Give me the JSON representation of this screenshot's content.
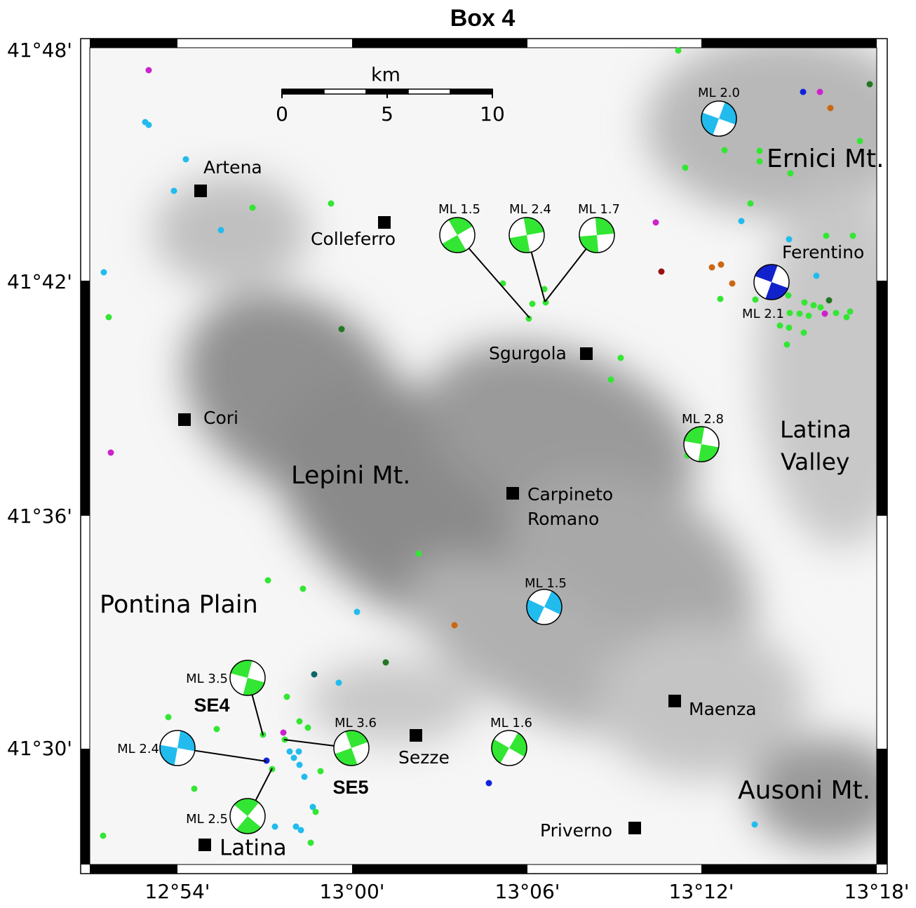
{
  "title": "Box 4",
  "lat_labels": [
    "41°48'",
    "41°42'",
    "41°36'",
    "41°30'"
  ],
  "lon_labels": [
    "12°54'",
    "13°00'",
    "13°06'",
    "13°12'",
    "13°18'"
  ],
  "scale": {
    "unit": "km",
    "ticks": [
      "0",
      "5",
      "10"
    ]
  },
  "places": [
    {
      "name": [
        "Artena"
      ]
    },
    {
      "name": [
        "Colleferro"
      ]
    },
    {
      "name": [
        "Sgurgola"
      ]
    },
    {
      "name": [
        "Cori"
      ]
    },
    {
      "name": [
        "Carpineto",
        "Romano"
      ]
    },
    {
      "name": [
        "Maenza"
      ]
    },
    {
      "name": [
        "Sezze"
      ]
    },
    {
      "name": [
        "Priverno"
      ]
    },
    {
      "name": [
        "Latina"
      ]
    },
    {
      "name": [
        "Ferentino"
      ]
    }
  ],
  "regions": [
    {
      "name": [
        "Ernici Mt."
      ]
    },
    {
      "name": [
        "Latina",
        "Valley"
      ]
    },
    {
      "name": [
        "Lepini Mt."
      ]
    },
    {
      "name": [
        "Pontina Plain"
      ]
    },
    {
      "name": [
        "Ausoni Mt."
      ]
    }
  ],
  "mechanisms": [
    {
      "label": "ML 2.0"
    },
    {
      "label": "ML 1.5"
    },
    {
      "label": "ML 2.4"
    },
    {
      "label": "ML 1.7"
    },
    {
      "label": "ML 2.1"
    },
    {
      "label": "ML 2.8"
    },
    {
      "label": "ML 1.5"
    },
    {
      "label": "ML 3.5"
    },
    {
      "label": "ML 2.4"
    },
    {
      "label": "ML 3.6"
    },
    {
      "label": "ML 2.5"
    },
    {
      "label": "ML 1.6"
    }
  ],
  "sequences": [
    "SE4",
    "SE5"
  ]
}
